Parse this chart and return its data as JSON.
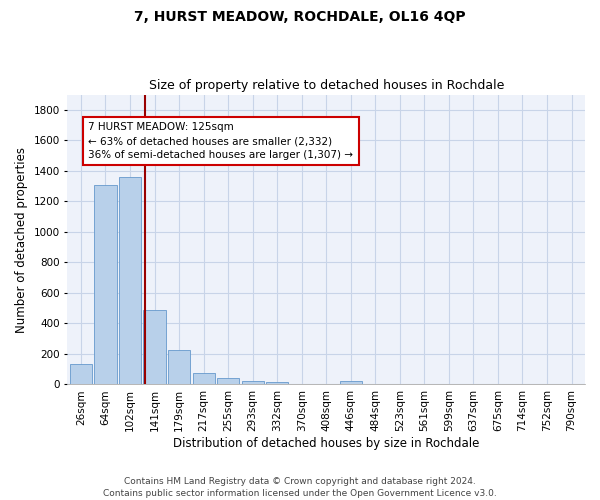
{
  "title": "7, HURST MEADOW, ROCHDALE, OL16 4QP",
  "subtitle": "Size of property relative to detached houses in Rochdale",
  "xlabel": "Distribution of detached houses by size in Rochdale",
  "ylabel": "Number of detached properties",
  "categories": [
    "26sqm",
    "64sqm",
    "102sqm",
    "141sqm",
    "179sqm",
    "217sqm",
    "255sqm",
    "293sqm",
    "332sqm",
    "370sqm",
    "408sqm",
    "446sqm",
    "484sqm",
    "523sqm",
    "561sqm",
    "599sqm",
    "637sqm",
    "675sqm",
    "714sqm",
    "752sqm",
    "790sqm"
  ],
  "values": [
    135,
    1310,
    1360,
    490,
    225,
    75,
    45,
    25,
    15,
    5,
    5,
    20,
    5,
    0,
    0,
    0,
    0,
    0,
    0,
    0,
    0
  ],
  "bar_color": "#b8d0ea",
  "bar_edge_color": "#6699cc",
  "vline_color": "#990000",
  "annotation_line1": "7 HURST MEADOW: 125sqm",
  "annotation_line2": "← 63% of detached houses are smaller (2,332)",
  "annotation_line3": "36% of semi-detached houses are larger (1,307) →",
  "annotation_box_color": "#ffffff",
  "annotation_box_edge": "#cc0000",
  "ylim": [
    0,
    1900
  ],
  "yticks": [
    0,
    200,
    400,
    600,
    800,
    1000,
    1200,
    1400,
    1600,
    1800
  ],
  "bg_color": "#eef2fa",
  "grid_color": "#c8d4e8",
  "footer": "Contains HM Land Registry data © Crown copyright and database right 2024.\nContains public sector information licensed under the Open Government Licence v3.0.",
  "title_fontsize": 10,
  "subtitle_fontsize": 9,
  "xlabel_fontsize": 8.5,
  "ylabel_fontsize": 8.5,
  "tick_fontsize": 7.5,
  "annotation_fontsize": 7.5,
  "footer_fontsize": 6.5
}
